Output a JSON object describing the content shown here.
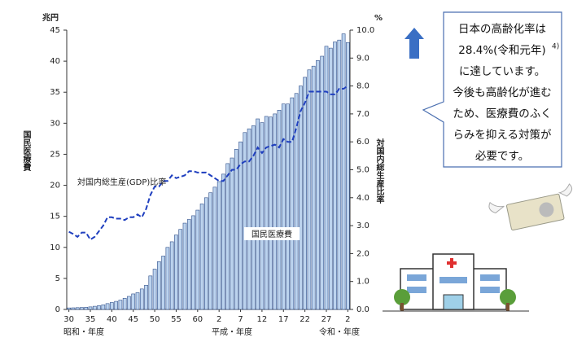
{
  "chart_data": {
    "type": "bar-line",
    "y_unit": "兆円",
    "y2_unit": "%",
    "ylabel": "国民医療費",
    "y2label": "対国内総生産比率",
    "era_labels": [
      "昭和・年度",
      "平成・年度",
      "令和・年度"
    ],
    "categories": [
      "30",
      null,
      null,
      null,
      null,
      "35",
      null,
      null,
      null,
      null,
      "40",
      null,
      null,
      null,
      null,
      "45",
      null,
      null,
      null,
      null,
      "50",
      null,
      null,
      null,
      null,
      "55",
      null,
      null,
      null,
      null,
      "60",
      null,
      null,
      null,
      null,
      "2",
      null,
      null,
      null,
      null,
      "7",
      null,
      null,
      null,
      null,
      "12",
      null,
      null,
      null,
      null,
      "17",
      null,
      null,
      null,
      null,
      "22",
      null,
      null,
      null,
      null,
      "27",
      null,
      null,
      null,
      null,
      "2"
    ],
    "series": [
      {
        "name": "国民医療費",
        "type": "bar",
        "color": "#bcd3ee",
        "values": [
          0.24,
          0.26,
          0.29,
          0.32,
          0.35,
          0.41,
          0.51,
          0.61,
          0.74,
          0.94,
          1.12,
          1.3,
          1.5,
          1.8,
          2.1,
          2.5,
          2.7,
          3.3,
          3.9,
          5.4,
          6.5,
          7.7,
          8.6,
          10.0,
          10.9,
          12.0,
          12.9,
          13.9,
          14.5,
          15.1,
          16.0,
          17.0,
          18.0,
          18.8,
          19.7,
          20.6,
          21.8,
          23.5,
          24.4,
          25.8,
          27.0,
          28.5,
          29.1,
          29.6,
          30.7,
          30.1,
          31.1,
          31.0,
          31.5,
          32.1,
          33.1,
          33.1,
          34.1,
          34.8,
          36.0,
          37.4,
          38.6,
          39.2,
          40.1,
          40.8,
          42.4,
          42.1,
          43.1,
          43.4,
          44.4,
          43.0
        ]
      },
      {
        "name": "対国内総生産(GDP)比率",
        "type": "line",
        "axis": "y2",
        "color": "#1f3fbf",
        "values": [
          2.78,
          2.7,
          2.6,
          2.75,
          2.75,
          2.5,
          2.6,
          2.8,
          3.0,
          3.3,
          3.3,
          3.25,
          3.25,
          3.2,
          3.3,
          3.3,
          3.4,
          3.3,
          3.6,
          4.1,
          4.4,
          4.4,
          4.6,
          4.6,
          4.8,
          4.7,
          4.75,
          4.8,
          4.95,
          4.95,
          4.9,
          4.9,
          4.9,
          4.8,
          4.7,
          4.6,
          4.6,
          4.8,
          5.0,
          5.0,
          5.2,
          5.3,
          5.3,
          5.5,
          5.8,
          5.6,
          5.8,
          5.85,
          5.9,
          5.8,
          6.1,
          6.0,
          6.0,
          6.5,
          7.1,
          7.4,
          7.8,
          7.8,
          7.8,
          7.8,
          7.8,
          7.7,
          7.7,
          7.9,
          7.9,
          8.0
        ]
      }
    ],
    "ylim": [
      0,
      45
    ],
    "yticks": [
      0,
      5,
      10,
      15,
      20,
      25,
      30,
      35,
      40,
      45
    ],
    "y2lim": [
      0,
      10
    ],
    "y2ticks": [
      {
        "value": 0,
        "label": "0.0"
      },
      {
        "value": 1,
        "label": "1.0"
      },
      {
        "value": 2,
        "label": "2.0"
      },
      {
        "value": 3,
        "label": "3.0"
      },
      {
        "value": 4,
        "label": "4.0"
      },
      {
        "value": 5,
        "label": "5.0"
      },
      {
        "value": 6,
        "label": "6.0"
      },
      {
        "value": 7,
        "label": "7.0"
      },
      {
        "value": 8,
        "label": "8.0"
      },
      {
        "value": 9,
        "label": "9.0"
      },
      {
        "value": 10,
        "label": "10.0"
      }
    ],
    "callout": {
      "lines": [
        "日本の高齢化率は",
        "28.4%(令和元年)",
        "に達しています。",
        "今後も高齢化が進む",
        "ため、医療費のふく",
        "らみを抑える対策が",
        "必要です。"
      ],
      "superscript": "4)"
    }
  }
}
